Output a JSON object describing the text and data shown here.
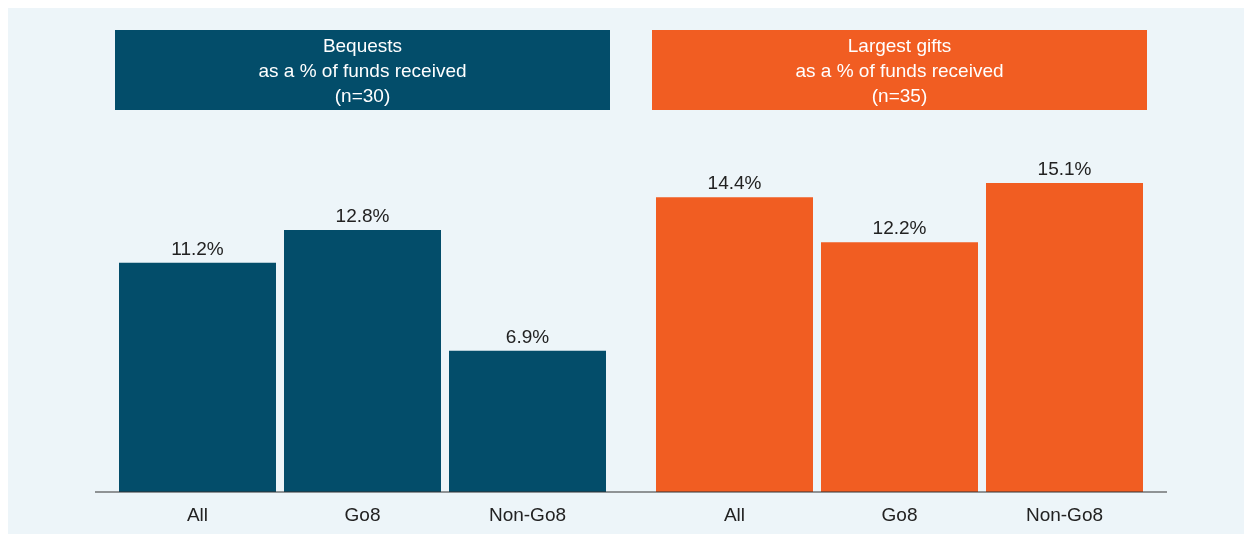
{
  "chart_data": [
    {
      "type": "bar",
      "title": "Bequests\nas a % of funds received\n(n=30)",
      "categories": [
        "All",
        "Go8",
        "Non-Go8"
      ],
      "values": [
        11.2,
        12.8,
        6.9
      ],
      "value_labels": [
        "11.2%",
        "12.8%",
        "6.9%"
      ],
      "color": "#034d6a"
    },
    {
      "type": "bar",
      "title": "Largest gifts\nas a % of funds received\n(n=35)",
      "categories": [
        "All",
        "Go8",
        "Non-Go8"
      ],
      "values": [
        14.4,
        12.2,
        15.1
      ],
      "value_labels": [
        "14.4%",
        "12.2%",
        "15.1%"
      ],
      "color": "#f15d22"
    }
  ]
}
